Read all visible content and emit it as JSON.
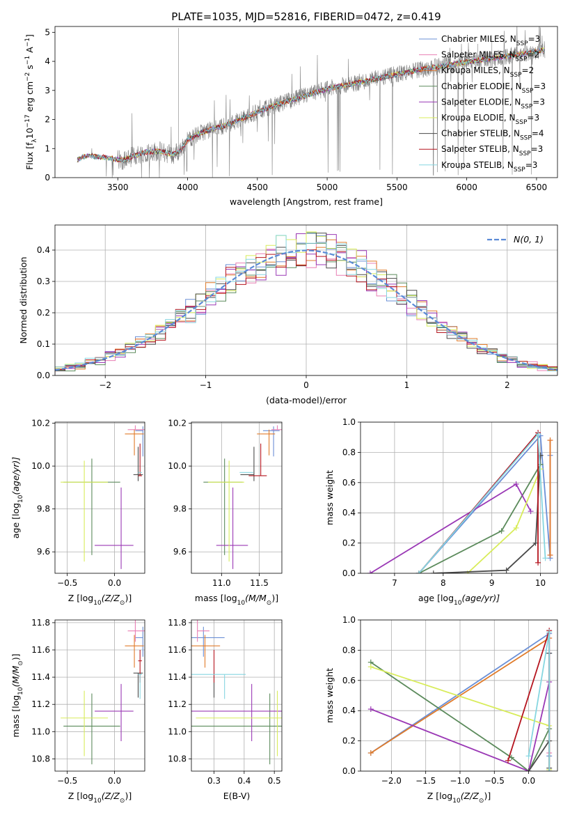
{
  "figure": {
    "title": "PLATE=1035, MJD=52816, FIBERID=0472, z=0.419",
    "colors": {
      "chabrier_miles": "#6a8fd6",
      "salpeter_miles": "#e87fb4",
      "kroupa_miles": "#e07b2a",
      "chabrier_elodie": "#5b8a5b",
      "salpeter_elodie": "#9a38b5",
      "kroupa_elodie": "#d8ec5a",
      "chabrier_stelib": "#4a4a4a",
      "salpeter_stelib": "#b5141e",
      "kroupa_stelib": "#86d6e0",
      "spectrum": "#808080",
      "gaussian": "#5b8ad6"
    }
  },
  "chart_data": [
    {
      "id": "spectrum",
      "type": "line",
      "xlabel": "wavelength [Angstrom, rest frame]",
      "ylabel": "Flux [f",
      "ylabel_sub": "λ",
      "ylabel_mid": "10",
      "ylabel_exp": "−17",
      "ylabel_unit": " erg cm",
      "ylabel_exp2": "−2",
      "ylabel_unit2": " s",
      "ylabel_exp3": "−1",
      "ylabel_unit3": " A",
      "ylabel_exp4": "−1",
      "ylabel_end": "]",
      "xlim": [
        3050,
        6650
      ],
      "ylim": [
        0,
        5.2
      ],
      "xticks": [
        "3500",
        "4000",
        "4500",
        "5000",
        "5500",
        "6000",
        "6500"
      ],
      "xtick_values": [
        3500,
        4000,
        4500,
        5000,
        5500,
        6000,
        6500
      ],
      "yticks": [
        "0",
        "1",
        "2",
        "3",
        "4",
        "5"
      ],
      "ytick_values": [
        0,
        1,
        2,
        3,
        4,
        5
      ],
      "continuum_x": [
        3210,
        3250,
        3300,
        3350,
        3400,
        3450,
        3500,
        3550,
        3600,
        3650,
        3700,
        3750,
        3800,
        3850,
        3900,
        3950,
        4000,
        4100,
        4200,
        4300,
        4400,
        4500,
        4600,
        4700,
        4800,
        4900,
        5000,
        5100,
        5200,
        5300,
        5400,
        5500,
        5600,
        5700,
        5800,
        5900,
        6000,
        6100,
        6200,
        6300,
        6400,
        6500,
        6560
      ],
      "continuum_y": [
        0.6,
        0.72,
        0.75,
        0.72,
        0.7,
        0.66,
        0.62,
        0.62,
        0.72,
        0.8,
        0.88,
        0.9,
        0.9,
        0.85,
        0.8,
        0.95,
        1.3,
        1.55,
        1.7,
        1.85,
        2.05,
        2.25,
        2.45,
        2.6,
        2.75,
        2.9,
        3.05,
        3.15,
        3.25,
        3.35,
        3.45,
        3.55,
        3.65,
        3.75,
        3.82,
        3.9,
        3.98,
        4.05,
        4.12,
        4.18,
        4.25,
        4.35,
        4.4
      ],
      "legend": [
        {
          "label": "Chabrier MILES, N",
          "sub": "SSP",
          "tail": "=3",
          "color_key": "chabrier_miles"
        },
        {
          "label": "Salpeter MILES, N",
          "sub": "SSP",
          "tail": "=2",
          "color_key": "salpeter_miles"
        },
        {
          "label": "Kroupa MILES, N",
          "sub": "SSP",
          "tail": "=2",
          "color_key": "kroupa_miles"
        },
        {
          "label": "Chabrier ELODIE, N",
          "sub": "SSP",
          "tail": "=3",
          "color_key": "chabrier_elodie"
        },
        {
          "label": "Salpeter ELODIE, N",
          "sub": "SSP",
          "tail": "=3",
          "color_key": "salpeter_elodie"
        },
        {
          "label": "Kroupa ELODIE, N",
          "sub": "SSP",
          "tail": "=3",
          "color_key": "kroupa_elodie"
        },
        {
          "label": "Chabrier STELIB, N",
          "sub": "SSP",
          "tail": "=4",
          "color_key": "chabrier_stelib"
        },
        {
          "label": "Salpeter STELIB, N",
          "sub": "SSP",
          "tail": "=3",
          "color_key": "salpeter_stelib"
        },
        {
          "label": "Kroupa STELIB, N",
          "sub": "SSP",
          "tail": "=3",
          "color_key": "kroupa_stelib"
        }
      ],
      "legend_placement": "right",
      "grid": false
    },
    {
      "id": "histogram",
      "type": "histogram",
      "xlabel": "(data-model)/error",
      "ylabel": "Normed distribution",
      "xlim": [
        -2.5,
        2.5
      ],
      "ylim": [
        0,
        0.48
      ],
      "xticks": [
        "−2",
        "−1",
        "0",
        "1",
        "2"
      ],
      "xtick_values": [
        -2,
        -1,
        0,
        1,
        2
      ],
      "yticks": [
        "0.0",
        "0.1",
        "0.2",
        "0.3",
        "0.4"
      ],
      "ytick_values": [
        0,
        0.1,
        0.2,
        0.3,
        0.4
      ],
      "bin_width": 0.1,
      "legend_label": "N(0, 1)",
      "legend_placement": "top-right",
      "grid": true
    },
    {
      "id": "age-vs-z",
      "type": "errorbar",
      "xlabel": "Z [log",
      "xlabel_sub": "10",
      "xlabel_rest": "(Z/Z",
      "xlabel_sub2": "⊙",
      "xlabel_end": ")]",
      "ylabel": "age  [log",
      "ylabel_sub": "10",
      "ylabel_rest": "(age/yr)]",
      "xlim": [
        -0.63,
        0.32
      ],
      "ylim": [
        9.5,
        10.205
      ],
      "xticks": [
        "−0.5",
        "0.0"
      ],
      "xtick_values": [
        -0.5,
        0.0
      ],
      "yticks": [
        "9.6",
        "9.8",
        "10.0",
        "10.2"
      ],
      "ytick_values": [
        9.6,
        9.8,
        10.0,
        10.2
      ]
    },
    {
      "id": "age-vs-mass",
      "type": "errorbar",
      "xlabel": "mass [log",
      "xlabel_sub": "10",
      "xlabel_rest": "(M/M",
      "xlabel_sub2": "⊙",
      "xlabel_end": ")]",
      "xlim": [
        10.6,
        11.8
      ],
      "ylim": [
        9.5,
        10.205
      ],
      "xticks": [
        "11.0",
        "11.5"
      ],
      "xtick_values": [
        11.0,
        11.5
      ],
      "yticks": [
        "9.6",
        "9.8",
        "10.0",
        "10.2"
      ],
      "ytick_values": [
        9.6,
        9.8,
        10.0,
        10.2
      ]
    },
    {
      "id": "weight-vs-age",
      "type": "line",
      "xlabel": "age  [log",
      "xlabel_sub": "10",
      "xlabel_rest": "(age/yr)]",
      "ylabel": "mass weight",
      "xlim": [
        6.3,
        10.35
      ],
      "ylim": [
        0,
        1.0
      ],
      "xticks": [
        "7",
        "8",
        "9",
        "10"
      ],
      "xtick_values": [
        7,
        8,
        9,
        10
      ],
      "yticks": [
        "0.0",
        "0.2",
        "0.4",
        "0.6",
        "0.8",
        "1.0"
      ],
      "ytick_values": [
        0,
        0.2,
        0.4,
        0.6,
        0.8,
        1.0
      ]
    },
    {
      "id": "mass-vs-z",
      "type": "errorbar",
      "xlabel": "Z [log",
      "xlabel_sub": "10",
      "xlabel_rest": "(Z/Z",
      "xlabel_sub2": "⊙",
      "xlabel_end": ")]",
      "ylabel": "mass [log",
      "ylabel_sub": "10",
      "ylabel_rest": "(M/M",
      "ylabel_sub2": "⊙",
      "ylabel_end": ")]",
      "xlim": [
        -0.63,
        0.32
      ],
      "ylim": [
        10.71,
        11.82
      ],
      "xticks": [
        "−0.5",
        "0.0"
      ],
      "xtick_values": [
        -0.5,
        0.0
      ],
      "yticks": [
        "10.8",
        "11.0",
        "11.2",
        "11.4",
        "11.6",
        "11.8"
      ],
      "ytick_values": [
        10.8,
        11.0,
        11.2,
        11.4,
        11.6,
        11.8
      ]
    },
    {
      "id": "mass-vs-ebv",
      "type": "errorbar",
      "xlabel": "E(B-V)",
      "xlim": [
        0.225,
        0.525
      ],
      "ylim": [
        10.71,
        11.82
      ],
      "xticks": [
        "0.3",
        "0.4",
        "0.5"
      ],
      "xtick_values": [
        0.3,
        0.4,
        0.5
      ],
      "yticks": [
        "10.8",
        "11.0",
        "11.2",
        "11.4",
        "11.6",
        "11.8"
      ],
      "ytick_values": [
        10.8,
        11.0,
        11.2,
        11.4,
        11.6,
        11.8
      ]
    },
    {
      "id": "weight-vs-z",
      "type": "line",
      "xlabel": "Z [log",
      "xlabel_sub": "10",
      "xlabel_rest": "(Z/Z",
      "xlabel_sub2": "⊙",
      "xlabel_end": ")]",
      "ylabel": "mass weight",
      "xlim": [
        -2.45,
        0.42
      ],
      "ylim": [
        0,
        1.0
      ],
      "xticks": [
        "−2.0",
        "−1.5",
        "−1.0",
        "−0.5",
        "0.0"
      ],
      "xtick_values": [
        -2.0,
        -1.5,
        -1.0,
        -0.5,
        0.0
      ],
      "yticks": [
        "0.0",
        "0.2",
        "0.4",
        "0.6",
        "0.8",
        "1.0"
      ],
      "ytick_values": [
        0,
        0.2,
        0.4,
        0.6,
        0.8,
        1.0
      ]
    }
  ],
  "models": [
    {
      "key": "chabrier_miles",
      "z": 0.3,
      "z_err": [
        0.08,
        0.0
      ],
      "age": 10.165,
      "age_err": [
        0.12,
        0.02
      ],
      "mass": 11.69,
      "mass_err": [
        0.14,
        0.08
      ],
      "ebv": 0.265,
      "ebv_err": [
        0.14,
        0.07
      ],
      "sfh_age": [
        7.5,
        10.0,
        10.2,
        10.2
      ],
      "sfh_w": [
        0.0,
        0.91,
        0.1,
        0.78
      ],
      "sfh_z": [
        -2.3,
        0.3,
        0.3,
        0.3
      ],
      "sfh_zw": [
        0.12,
        0.91,
        0.1,
        0.78
      ]
    },
    {
      "key": "salpeter_miles",
      "z": 0.22,
      "z_err": [
        0.08,
        0.1
      ],
      "age": 10.17,
      "age_err": [
        0.0,
        0.02
      ],
      "mass": 11.74,
      "mass_err": [
        0.08,
        0.08
      ],
      "ebv": 0.245,
      "ebv_err": [
        0.0,
        0.04
      ],
      "sfh_age": [
        10.2,
        10.2
      ],
      "sfh_w": [
        0.12,
        0.88
      ],
      "sfh_z": [
        0.3,
        0.3
      ],
      "sfh_zw": [
        0.12,
        0.88
      ]
    },
    {
      "key": "kroupa_miles",
      "z": 0.21,
      "z_err": [
        0.1,
        0.1
      ],
      "age": 10.15,
      "age_err": [
        0.1,
        0.02
      ],
      "mass": 11.63,
      "mass_err": [
        0.16,
        0.08
      ],
      "ebv": 0.27,
      "ebv_err": [
        0.1,
        0.05
      ],
      "sfh_age": [
        10.2,
        10.2
      ],
      "sfh_w": [
        0.12,
        0.88
      ],
      "sfh_z": [
        -2.3,
        0.3
      ],
      "sfh_zw": [
        0.12,
        0.88
      ]
    },
    {
      "key": "chabrier_elodie",
      "z": -0.24,
      "z_err": [
        0.3,
        0.3
      ],
      "age": 9.925,
      "age_err": [
        0.34,
        0.11
      ],
      "mass": 11.04,
      "mass_err": [
        0.28,
        0.24
      ],
      "ebv": 0.485,
      "ebv_err": [
        0.28,
        0.25
      ],
      "sfh_age": [
        7.5,
        9.2,
        10.0,
        10.0
      ],
      "sfh_w": [
        0.0,
        0.28,
        0.72,
        0.72
      ],
      "sfh_z": [
        -2.3,
        -0.25,
        0.0,
        0.3
      ],
      "sfh_zw": [
        0.72,
        0.09,
        0.0,
        0.28
      ]
    },
    {
      "key": "salpeter_elodie",
      "z": 0.07,
      "z_err": [
        0.28,
        0.13
      ],
      "age": 9.63,
      "age_err": [
        0.11,
        0.27
      ],
      "mass": 11.15,
      "mass_err": [
        0.22,
        0.2
      ],
      "ebv": 0.425,
      "ebv_err": [
        0.25,
        0.2
      ],
      "sfh_age": [
        6.5,
        9.5,
        9.8
      ],
      "sfh_w": [
        0.0,
        0.59,
        0.41
      ],
      "sfh_z": [
        -2.3,
        0.0,
        0.3
      ],
      "sfh_zw": [
        0.41,
        0.0,
        0.59
      ]
    },
    {
      "key": "kroupa_elodie",
      "z": -0.32,
      "z_err": [
        0.25,
        0.25
      ],
      "age": 9.925,
      "age_err": [
        0.37,
        0.1
      ],
      "mass": 11.1,
      "mass_err": [
        0.28,
        0.2
      ],
      "ebv": 0.51,
      "ebv_err": [
        0.27,
        0.08
      ],
      "sfh_age": [
        8.5,
        9.5,
        10.0
      ],
      "sfh_w": [
        0.0,
        0.3,
        0.69
      ],
      "sfh_z": [
        -2.3,
        0.3,
        0.3
      ],
      "sfh_zw": [
        0.69,
        0.3,
        0.01
      ]
    },
    {
      "key": "chabrier_stelib",
      "z": 0.25,
      "z_err": [
        0.05,
        0.05
      ],
      "age": 9.96,
      "age_err": [
        0.03,
        0.13
      ],
      "mass": 11.43,
      "mass_err": [
        0.18,
        0.0
      ],
      "ebv": 0.3,
      "ebv_err": [
        0.0,
        0.0
      ],
      "sfh_age": [
        7.8,
        9.3,
        9.9,
        10.0,
        10.0
      ],
      "sfh_w": [
        0.0,
        0.02,
        0.2,
        0.78,
        0.78
      ],
      "sfh_z": [
        0.0,
        0.3,
        0.3,
        0.3
      ],
      "sfh_zw": [
        0.0,
        0.2,
        0.02,
        0.78
      ]
    },
    {
      "key": "salpeter_stelib",
      "z": 0.27,
      "z_err": [
        0.02,
        0.02
      ],
      "age": 9.955,
      "age_err": [
        0.0,
        0.15
      ],
      "mass": 11.52,
      "mass_err": [
        0.16,
        0.08
      ],
      "ebv": 0.3,
      "ebv_err": [
        0.0,
        0.0
      ],
      "sfh_age": [
        7.5,
        9.95,
        9.95
      ],
      "sfh_w": [
        0.0,
        0.93,
        0.07
      ],
      "sfh_z": [
        -0.3,
        0.3,
        0.3
      ],
      "sfh_zw": [
        0.07,
        0.93,
        0.0
      ]
    },
    {
      "key": "kroupa_stelib",
      "z": 0.27,
      "z_err": [
        0.02,
        0.02
      ],
      "age": 9.97,
      "age_err": [
        0.0,
        0.0
      ],
      "mass": 11.42,
      "mass_err": [
        0.18,
        0.0
      ],
      "ebv": 0.335,
      "ebv_err": [
        0.34,
        0.07
      ],
      "sfh_age": [
        7.5,
        9.95,
        10.1
      ],
      "sfh_w": [
        0.0,
        0.92,
        0.1
      ],
      "sfh_z": [
        0.0,
        0.3,
        0.3
      ],
      "sfh_zw": [
        0.1,
        0.92,
        0.0
      ]
    }
  ]
}
